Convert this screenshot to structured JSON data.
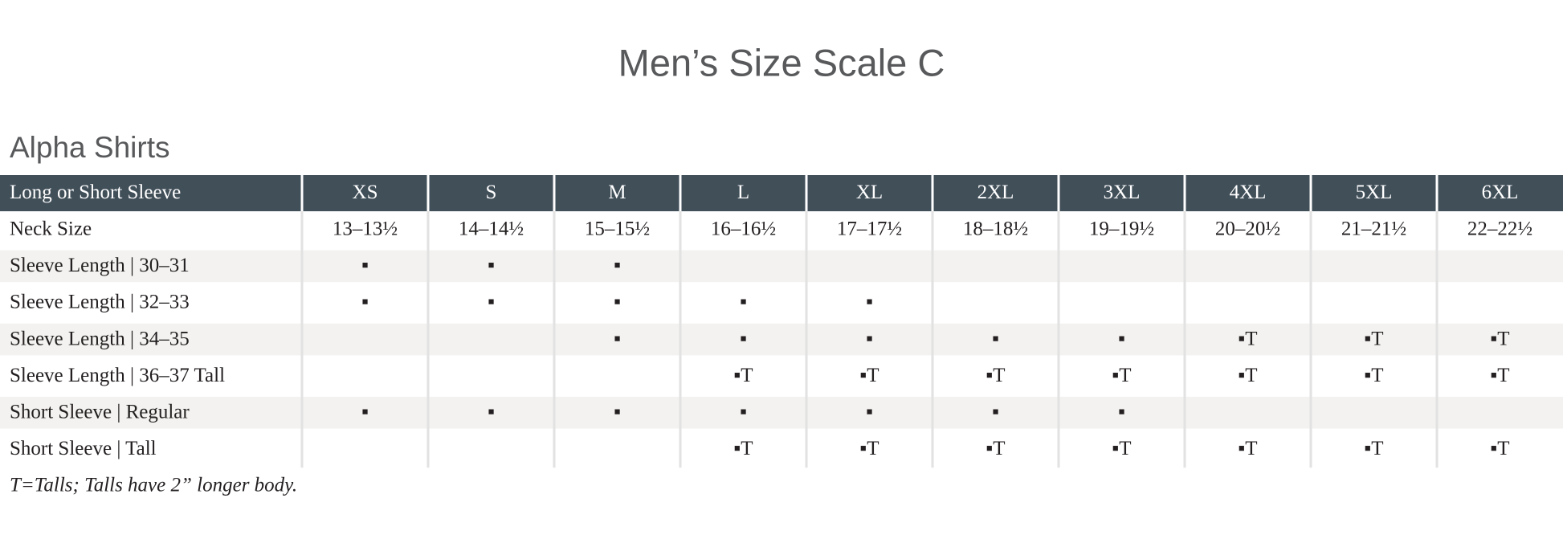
{
  "header": {
    "title": "Men’s Size Scale C"
  },
  "section": {
    "title": "Alpha Shirts"
  },
  "table": {
    "header": [
      "Long or Short Sleeve",
      "XS",
      "S",
      "M",
      "L",
      "XL",
      "2XL",
      "3XL",
      "4XL",
      "5XL",
      "6XL"
    ],
    "rows": [
      [
        "Neck Size",
        "13–13½",
        "14–14½",
        "15–15½",
        "16–16½",
        "17–17½",
        "18–18½",
        "19–19½",
        "20–20½",
        "21–21½",
        "22–22½"
      ],
      [
        "Sleeve Length | 30–31",
        "▪",
        "▪",
        "▪",
        null,
        null,
        null,
        null,
        null,
        null,
        null
      ],
      [
        "Sleeve Length | 32–33",
        "▪",
        "▪",
        "▪",
        "▪",
        "▪",
        null,
        null,
        null,
        null,
        null
      ],
      [
        "Sleeve Length | 34–35",
        null,
        null,
        "▪",
        "▪",
        "▪",
        "▪",
        "▪",
        "▪T",
        "▪T",
        "▪T"
      ],
      [
        "Sleeve Length | 36–37 Tall",
        null,
        null,
        null,
        "▪T",
        "▪T",
        "▪T",
        "▪T",
        "▪T",
        "▪T",
        "▪T"
      ],
      [
        "Short Sleeve | Regular",
        "▪",
        "▪",
        "▪",
        "▪",
        "▪",
        "▪",
        "▪",
        null,
        null,
        null
      ],
      [
        "Short Sleeve | Tall",
        null,
        null,
        null,
        "▪T",
        "▪T",
        "▪T",
        "▪T",
        "▪T",
        "▪T",
        "▪T"
      ]
    ]
  },
  "footnote": "T=Talls; Talls have 2” longer body."
}
